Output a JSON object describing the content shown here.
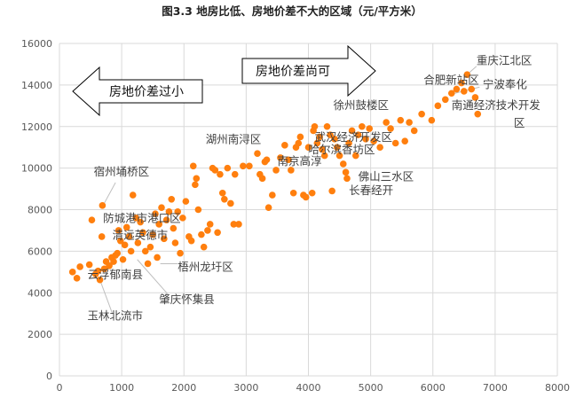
{
  "chart_data": {
    "type": "scatter",
    "title": "图3.3  地房比低、房地价差不大的区域（元/平方米）",
    "xlim": [
      0,
      8000
    ],
    "ylim": [
      0,
      16000
    ],
    "x_ticks": [
      0,
      1000,
      2000,
      3000,
      4000,
      5000,
      6000,
      7000,
      8000
    ],
    "y_ticks": [
      0,
      2000,
      4000,
      6000,
      8000,
      10000,
      12000,
      14000,
      16000
    ],
    "grid": true,
    "point_color": "#FF7F0E",
    "arrows": [
      {
        "text": "房地价差过小",
        "direction": "left"
      },
      {
        "text": "房地价差尚可",
        "direction": "right"
      }
    ],
    "points": [
      [
        210,
        5000
      ],
      [
        280,
        4700
      ],
      [
        330,
        5250
      ],
      [
        480,
        5350
      ],
      [
        520,
        7500
      ],
      [
        580,
        4900
      ],
      [
        620,
        5050
      ],
      [
        650,
        4620
      ],
      [
        680,
        6700
      ],
      [
        690,
        8200
      ],
      [
        720,
        5150
      ],
      [
        750,
        5500
      ],
      [
        800,
        5300
      ],
      [
        840,
        5700
      ],
      [
        870,
        5500
      ],
      [
        900,
        5800
      ],
      [
        930,
        5900
      ],
      [
        950,
        7000
      ],
      [
        980,
        6500
      ],
      [
        1020,
        5600
      ],
      [
        1050,
        6300
      ],
      [
        1080,
        7150
      ],
      [
        1120,
        6700
      ],
      [
        1150,
        6000
      ],
      [
        1180,
        8700
      ],
      [
        1230,
        7600
      ],
      [
        1260,
        6400
      ],
      [
        1300,
        7400
      ],
      [
        1340,
        6900
      ],
      [
        1380,
        6000
      ],
      [
        1420,
        5400
      ],
      [
        1460,
        6200
      ],
      [
        1500,
        6800
      ],
      [
        1540,
        7800
      ],
      [
        1570,
        5700
      ],
      [
        1600,
        7300
      ],
      [
        1640,
        8100
      ],
      [
        1680,
        6600
      ],
      [
        1720,
        7500
      ],
      [
        1760,
        7900
      ],
      [
        1800,
        8500
      ],
      [
        1830,
        7100
      ],
      [
        1860,
        6400
      ],
      [
        1900,
        7900
      ],
      [
        1940,
        5900
      ],
      [
        1980,
        7600
      ],
      [
        2030,
        8400
      ],
      [
        2080,
        6700
      ],
      [
        2120,
        6500
      ],
      [
        2150,
        10100
      ],
      [
        2180,
        9200
      ],
      [
        2200,
        9500
      ],
      [
        2230,
        8000
      ],
      [
        2280,
        6800
      ],
      [
        2320,
        6200
      ],
      [
        2380,
        7000
      ],
      [
        2420,
        7300
      ],
      [
        2460,
        10000
      ],
      [
        2500,
        9900
      ],
      [
        2540,
        6900
      ],
      [
        2580,
        9700
      ],
      [
        2620,
        8800
      ],
      [
        2650,
        8500
      ],
      [
        2700,
        10000
      ],
      [
        2750,
        8300
      ],
      [
        2800,
        7300
      ],
      [
        2820,
        9700
      ],
      [
        2880,
        7300
      ],
      [
        2950,
        10100
      ],
      [
        3050,
        10100
      ],
      [
        3180,
        10700
      ],
      [
        3220,
        9700
      ],
      [
        3260,
        9500
      ],
      [
        3300,
        10300
      ],
      [
        3330,
        10400
      ],
      [
        3360,
        8100
      ],
      [
        3420,
        8700
      ],
      [
        3480,
        9900
      ],
      [
        3550,
        10500
      ],
      [
        3620,
        11100
      ],
      [
        3680,
        10400
      ],
      [
        3720,
        9900
      ],
      [
        3760,
        8800
      ],
      [
        3800,
        11000
      ],
      [
        3840,
        11200
      ],
      [
        3870,
        11500
      ],
      [
        3920,
        8700
      ],
      [
        3960,
        8600
      ],
      [
        4000,
        11000
      ],
      [
        4060,
        8800
      ],
      [
        4080,
        11800
      ],
      [
        4100,
        12000
      ],
      [
        4140,
        11200
      ],
      [
        4180,
        11500
      ],
      [
        4220,
        10900
      ],
      [
        4260,
        10600
      ],
      [
        4300,
        12000
      ],
      [
        4350,
        11600
      ],
      [
        4380,
        8900
      ],
      [
        4420,
        11400
      ],
      [
        4460,
        11000
      ],
      [
        4500,
        10600
      ],
      [
        4560,
        10200
      ],
      [
        4600,
        9800
      ],
      [
        4620,
        9500
      ],
      [
        4650,
        11200
      ],
      [
        4700,
        11800
      ],
      [
        4760,
        10600
      ],
      [
        4800,
        11600
      ],
      [
        4860,
        12000
      ],
      [
        4920,
        11400
      ],
      [
        4980,
        11900
      ],
      [
        5050,
        11300
      ],
      [
        5150,
        11000
      ],
      [
        5250,
        12200
      ],
      [
        5320,
        11900
      ],
      [
        5400,
        11200
      ],
      [
        5480,
        12300
      ],
      [
        5550,
        11300
      ],
      [
        5620,
        12200
      ],
      [
        5700,
        11800
      ],
      [
        5820,
        12600
      ],
      [
        5980,
        12300
      ],
      [
        6080,
        13000
      ],
      [
        6200,
        13300
      ],
      [
        6300,
        13600
      ],
      [
        6380,
        13800
      ],
      [
        6460,
        14100
      ],
      [
        6500,
        13700
      ],
      [
        6550,
        14500
      ],
      [
        6620,
        13800
      ],
      [
        6680,
        13400
      ],
      [
        6720,
        12600
      ]
    ],
    "annotations": [
      {
        "text": "重庆江北区",
        "x": 6700,
        "y": 15000
      },
      {
        "text": "合肥新站区",
        "x": 5850,
        "y": 14050
      },
      {
        "text": "宁波奉化",
        "x": 6800,
        "y": 13850
      },
      {
        "text": "南通经济技术开发",
        "x": 6300,
        "y": 12850
      },
      {
        "text": "区",
        "x": 7300,
        "y": 12000
      },
      {
        "text": "徐州鼓楼区",
        "x": 4400,
        "y": 12850
      },
      {
        "text": "湖州南浔区",
        "x": 2350,
        "y": 11200
      },
      {
        "text": "武汉经济开发区",
        "x": 4100,
        "y": 11300
      },
      {
        "text": "哈尔滨香坊区",
        "x": 4000,
        "y": 10700
      },
      {
        "text": "南京高淳",
        "x": 3500,
        "y": 10150
      },
      {
        "text": "佛山三水区",
        "x": 4800,
        "y": 9400
      },
      {
        "text": "长春经开",
        "x": 4650,
        "y": 8750
      },
      {
        "text": "宿州埇桥区",
        "x": 550,
        "y": 9650
      },
      {
        "text": "防城港市港口区",
        "x": 700,
        "y": 7400
      },
      {
        "text": "清远英德市",
        "x": 850,
        "y": 6600
      },
      {
        "text": "梧州龙圩区",
        "x": 1900,
        "y": 5050
      },
      {
        "text": "云浮郁南县",
        "x": 450,
        "y": 4700
      },
      {
        "text": "肇庆怀集县",
        "x": 1600,
        "y": 3500
      },
      {
        "text": "玉林北流市",
        "x": 450,
        "y": 2700
      }
    ],
    "leader_lines": [
      {
        "from": [
          700,
          8200
        ],
        "to": [
          900,
          9300
        ]
      },
      {
        "from": [
          1620,
          5400
        ],
        "to": [
          1900,
          5400
        ]
      },
      {
        "from": [
          650,
          4620
        ],
        "to": [
          850,
          3000
        ]
      },
      {
        "from": [
          1250,
          5600
        ],
        "to": [
          1750,
          3900
        ]
      },
      {
        "from": [
          6350,
          13600
        ],
        "to": [
          6750,
          13900
        ]
      },
      {
        "from": [
          6550,
          14500
        ],
        "to": [
          6700,
          14900
        ]
      }
    ]
  }
}
